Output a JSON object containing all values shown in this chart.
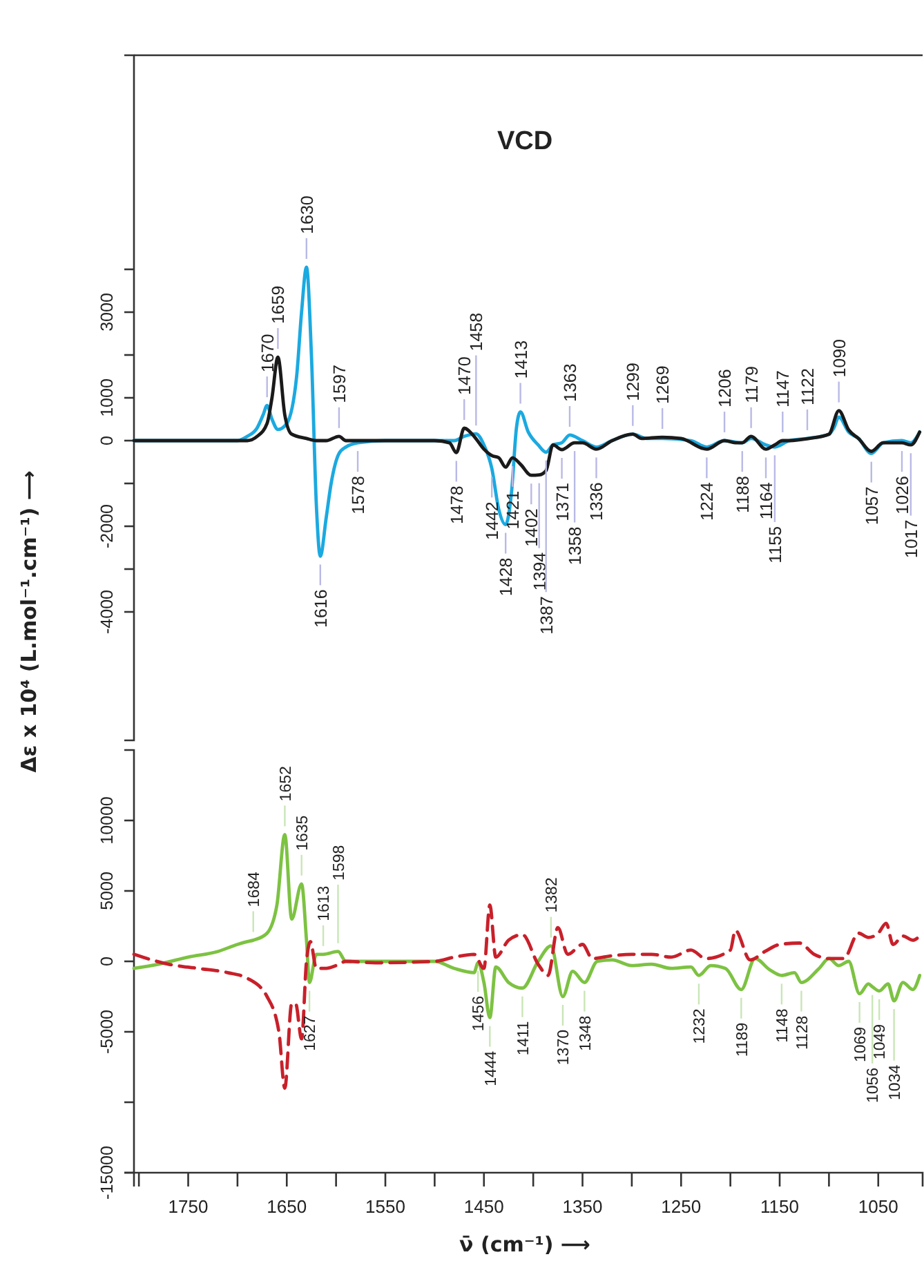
{
  "chart_data": [
    {
      "type": "line",
      "title": "VCD",
      "ylabel": "Δε x 10⁴ (L.mol⁻¹.cm⁻¹) ⟶",
      "xlim": [
        1805,
        1005
      ],
      "ylim": [
        -7000,
        9000
      ],
      "tick_labels": "y",
      "yticks": [
        {
          "value": 4000,
          "label": null
        },
        3000,
        {
          "value": 2000,
          "label": null
        },
        1000,
        0,
        {
          "value": -1000,
          "label": null
        },
        -2000,
        {
          "value": -3000,
          "label": null
        },
        -4000
      ],
      "series": [
        {
          "color": "#1ba9e0",
          "x": [
            1805,
            1700,
            1690,
            1680,
            1674,
            1670,
            1665,
            1659,
            1650,
            1640,
            1635,
            1630,
            1625,
            1620,
            1616,
            1610,
            1605,
            1597,
            1590,
            1578,
            1550,
            1480,
            1470,
            1458,
            1450,
            1442,
            1435,
            1428,
            1422,
            1417,
            1413,
            1405,
            1395,
            1387,
            1380,
            1371,
            1363,
            1350,
            1336,
            1320,
            1299,
            1285,
            1269,
            1240,
            1224,
            1206,
            1188,
            1179,
            1164,
            1155,
            1140,
            1122,
            1100,
            1095,
            1090,
            1080,
            1070,
            1057,
            1045,
            1026,
            1017,
            1008
          ],
          "values": [
            0,
            0,
            100,
            300,
            600,
            820,
            500,
            260,
            400,
            1500,
            3000,
            4050,
            2000,
            -1500,
            -2700,
            -1800,
            -1000,
            -300,
            -150,
            -50,
            0,
            0,
            100,
            160,
            -100,
            -650,
            -1600,
            -1960,
            -1200,
            300,
            670,
            200,
            -100,
            -270,
            -100,
            -50,
            130,
            0,
            -150,
            0,
            150,
            50,
            50,
            0,
            -150,
            0,
            -50,
            50,
            -100,
            -150,
            0,
            50,
            150,
            300,
            550,
            200,
            50,
            -300,
            -50,
            0,
            -50,
            200
          ]
        },
        {
          "color": "#1a1a1a",
          "x": [
            1805,
            1690,
            1680,
            1670,
            1665,
            1659,
            1652,
            1645,
            1630,
            1620,
            1610,
            1597,
            1590,
            1500,
            1485,
            1478,
            1470,
            1460,
            1450,
            1442,
            1435,
            1428,
            1421,
            1413,
            1402,
            1394,
            1387,
            1380,
            1371,
            1358,
            1350,
            1336,
            1320,
            1299,
            1290,
            1269,
            1250,
            1224,
            1206,
            1195,
            1188,
            1179,
            1164,
            1155,
            1147,
            1140,
            1120,
            1100,
            1090,
            1080,
            1070,
            1057,
            1045,
            1026,
            1017,
            1008
          ],
          "values": [
            0,
            0,
            100,
            400,
            1000,
            1950,
            600,
            150,
            50,
            0,
            0,
            100,
            0,
            0,
            -50,
            -280,
            290,
            100,
            -200,
            -350,
            -400,
            -620,
            -400,
            -550,
            -810,
            -800,
            -700,
            -100,
            -210,
            -50,
            -50,
            -200,
            0,
            150,
            50,
            80,
            50,
            -200,
            0,
            -50,
            -50,
            100,
            -200,
            -100,
            0,
            0,
            50,
            150,
            700,
            250,
            50,
            -250,
            -50,
            -50,
            -100,
            200
          ]
        }
      ],
      "annotations": [
        {
          "text": "1670",
          "x": 1670,
          "y": 820
        },
        {
          "text": "1659",
          "x": 1659,
          "y": 1950
        },
        {
          "text": "1630",
          "x": 1630,
          "y": 4050
        },
        {
          "text": "1597",
          "x": 1597,
          "y": 100
        },
        {
          "text": "1470",
          "x": 1470,
          "y": 290
        },
        {
          "text": "1458",
          "x": 1458,
          "y": 160
        },
        {
          "text": "1413",
          "x": 1413,
          "y": 670
        },
        {
          "text": "1363",
          "x": 1363,
          "y": 130
        },
        {
          "text": "1299",
          "x": 1299,
          "y": 150
        },
        {
          "text": "1269",
          "x": 1269,
          "y": 80
        },
        {
          "text": "1206",
          "x": 1206,
          "y": 0
        },
        {
          "text": "1179",
          "x": 1179,
          "y": 100
        },
        {
          "text": "1147",
          "x": 1147,
          "y": 0
        },
        {
          "text": "1122",
          "x": 1122,
          "y": 50
        },
        {
          "text": "1090",
          "x": 1090,
          "y": 700
        },
        {
          "text": "1616",
          "x": 1616,
          "y": -2700
        },
        {
          "text": "1578",
          "x": 1578,
          "y": -50
        },
        {
          "text": "1478",
          "x": 1478,
          "y": -280
        },
        {
          "text": "1442",
          "x": 1442,
          "y": -650
        },
        {
          "text": "1428",
          "x": 1428,
          "y": -1960
        },
        {
          "text": "1421",
          "x": 1421,
          "y": -400
        },
        {
          "text": "1402",
          "x": 1402,
          "y": -810
        },
        {
          "text": "1394",
          "x": 1394,
          "y": -800
        },
        {
          "text": "1387",
          "x": 1387,
          "y": -270
        },
        {
          "text": "1371",
          "x": 1371,
          "y": -210
        },
        {
          "text": "1358",
          "x": 1358,
          "y": -50
        },
        {
          "text": "1336",
          "x": 1336,
          "y": -200
        },
        {
          "text": "1224",
          "x": 1224,
          "y": -200
        },
        {
          "text": "1188",
          "x": 1188,
          "y": -50
        },
        {
          "text": "1164",
          "x": 1164,
          "y": -200
        },
        {
          "text": "1155",
          "x": 1155,
          "y": -150
        },
        {
          "text": "1057",
          "x": 1057,
          "y": -300
        },
        {
          "text": "1026",
          "x": 1026,
          "y": -50
        },
        {
          "text": "1017",
          "x": 1017,
          "y": -100
        }
      ]
    },
    {
      "type": "line",
      "xlabel": "ν̄ (cm⁻¹) ⟶",
      "xlim": [
        1805,
        1005
      ],
      "ylim": [
        -15000,
        15000
      ],
      "xticks": [
        {
          "value": 1800,
          "label": null
        },
        1750,
        {
          "value": 1700,
          "label": null
        },
        1650,
        {
          "value": 1600,
          "label": null
        },
        1550,
        {
          "value": 1500,
          "label": null
        },
        1450,
        {
          "value": 1400,
          "label": null
        },
        1350,
        {
          "value": 1300,
          "label": null
        },
        1250,
        {
          "value": 1200,
          "label": null
        },
        1150,
        {
          "value": 1100,
          "label": null
        },
        1050
      ],
      "yticks": [
        10000,
        5000,
        0,
        -5000,
        {
          "value": -10000,
          "label": null
        },
        -15000
      ],
      "series": [
        {
          "color": "#7dc242",
          "line_style": "solid",
          "x": [
            1805,
            1780,
            1750,
            1720,
            1700,
            1690,
            1684,
            1670,
            1660,
            1652,
            1645,
            1635,
            1630,
            1627,
            1620,
            1613,
            1598,
            1590,
            1560,
            1500,
            1480,
            1460,
            1456,
            1450,
            1444,
            1438,
            1425,
            1411,
            1395,
            1382,
            1370,
            1360,
            1348,
            1335,
            1320,
            1300,
            1280,
            1260,
            1240,
            1232,
            1220,
            1205,
            1189,
            1175,
            1160,
            1148,
            1135,
            1128,
            1110,
            1100,
            1090,
            1080,
            1069,
            1060,
            1056,
            1049,
            1040,
            1034,
            1025,
            1015,
            1008
          ],
          "values": [
            -500,
            -200,
            300,
            700,
            1200,
            1400,
            1500,
            2000,
            4000,
            9000,
            3000,
            5500,
            1500,
            -1500,
            500,
            500,
            700,
            0,
            0,
            0,
            -500,
            -800,
            -100,
            -1500,
            -4000,
            -400,
            -1500,
            -1900,
            0,
            1100,
            -2500,
            -700,
            -1500,
            0,
            100,
            -300,
            -200,
            -500,
            -400,
            -1000,
            -300,
            -500,
            -2000,
            200,
            -600,
            -1000,
            -800,
            -1500,
            -500,
            200,
            -300,
            0,
            -2300,
            -1600,
            -1800,
            -2100,
            -1600,
            -2800,
            -1500,
            -2000,
            -1000
          ]
        },
        {
          "color": "#c8202a",
          "line_style": "dashed",
          "x": [
            1805,
            1770,
            1740,
            1710,
            1690,
            1670,
            1658,
            1652,
            1645,
            1641,
            1635,
            1630,
            1626,
            1620,
            1610,
            1600,
            1590,
            1560,
            1500,
            1480,
            1460,
            1450,
            1444,
            1438,
            1425,
            1411,
            1395,
            1385,
            1375,
            1365,
            1350,
            1340,
            1320,
            1300,
            1280,
            1260,
            1240,
            1225,
            1200,
            1195,
            1180,
            1165,
            1150,
            1130,
            1115,
            1100,
            1085,
            1070,
            1060,
            1050,
            1042,
            1035,
            1025,
            1015,
            1008
          ],
          "values": [
            500,
            -200,
            -500,
            -800,
            -1200,
            -2500,
            -5000,
            -9000,
            -3000,
            -3000,
            -5500,
            0,
            1400,
            -500,
            -500,
            -300,
            0,
            -100,
            0,
            300,
            500,
            -500,
            4000,
            300,
            1500,
            1900,
            -200,
            -1000,
            2400,
            500,
            1200,
            200,
            400,
            500,
            500,
            300,
            800,
            200,
            800,
            2200,
            100,
            700,
            1200,
            1300,
            500,
            200,
            200,
            2000,
            1700,
            2000,
            2700,
            1200,
            1800,
            1500,
            1800
          ]
        }
      ],
      "annotations": [
        {
          "text": "1684",
          "x": 1684,
          "y": 1500
        },
        {
          "text": "1652",
          "x": 1652,
          "y": 9000
        },
        {
          "text": "1635",
          "x": 1635,
          "y": 5500
        },
        {
          "text": "1613",
          "x": 1613,
          "y": 500
        },
        {
          "text": "1598",
          "x": 1598,
          "y": 700
        },
        {
          "text": "1382",
          "x": 1382,
          "y": 1100
        },
        {
          "text": "1627",
          "x": 1627,
          "y": -1500
        },
        {
          "text": "1456",
          "x": 1456,
          "y": -100
        },
        {
          "text": "1444",
          "x": 1444,
          "y": -4000
        },
        {
          "text": "1411",
          "x": 1411,
          "y": -1900
        },
        {
          "text": "1370",
          "x": 1370,
          "y": -2500
        },
        {
          "text": "1348",
          "x": 1348,
          "y": -1500
        },
        {
          "text": "1232",
          "x": 1232,
          "y": -1000
        },
        {
          "text": "1189",
          "x": 1189,
          "y": -2000
        },
        {
          "text": "1148",
          "x": 1148,
          "y": -1000
        },
        {
          "text": "1128",
          "x": 1128,
          "y": -1500
        },
        {
          "text": "1069",
          "x": 1069,
          "y": -2300
        },
        {
          "text": "1056",
          "x": 1056,
          "y": -1800
        },
        {
          "text": "1049",
          "x": 1049,
          "y": -2100
        },
        {
          "text": "1034",
          "x": 1034,
          "y": -2800
        }
      ]
    }
  ]
}
